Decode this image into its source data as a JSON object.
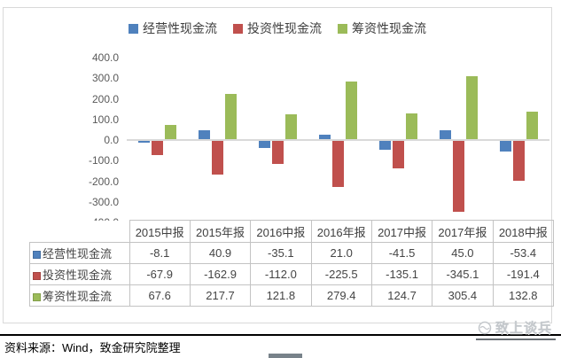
{
  "chart_data": {
    "type": "bar",
    "categories": [
      "2015中报",
      "2015年报",
      "2016中报",
      "2016年报",
      "2017中报",
      "2017年报",
      "2018中报"
    ],
    "series": [
      {
        "name": "经营性现金流",
        "color": "#4F81BD",
        "values": [
          -8.1,
          40.9,
          -35.1,
          21.0,
          -41.5,
          45.0,
          -53.4
        ]
      },
      {
        "name": "投资性现金流",
        "color": "#C0504D",
        "values": [
          -67.9,
          -162.9,
          -112.0,
          -225.5,
          -135.1,
          -345.1,
          -191.4
        ]
      },
      {
        "name": "筹资性现金流",
        "color": "#9BBB59",
        "values": [
          67.6,
          217.7,
          121.8,
          279.4,
          124.7,
          305.4,
          132.8
        ]
      }
    ],
    "title": "",
    "xlabel": "",
    "ylabel": "",
    "ylim": [
      -400,
      400
    ],
    "ytick_labels": [
      "400.0",
      "300.0",
      "200.0",
      "100.0",
      "0.0",
      "-100.0",
      "-200.0",
      "-300.0",
      "-400.0"
    ],
    "legend_position": "top",
    "grid": false
  },
  "table": {
    "header_row": [
      "2015中报",
      "2015年报",
      "2016中报",
      "2016年报",
      "2017中报",
      "2017年报",
      "2018中报"
    ],
    "rows": [
      {
        "label": "经营性现金流",
        "color": "#4F81BD",
        "cells": [
          "-8.1",
          "40.9",
          "-35.1",
          "21.0",
          "-41.5",
          "45.0",
          "-53.4"
        ]
      },
      {
        "label": "投资性现金流",
        "color": "#C0504D",
        "cells": [
          "-67.9",
          "-162.9",
          "-112.0",
          "-225.5",
          "-135.1",
          "-345.1",
          "-191.4"
        ]
      },
      {
        "label": "筹资性现金流",
        "color": "#9BBB59",
        "cells": [
          "67.6",
          "217.7",
          "121.8",
          "279.4",
          "124.7",
          "305.4",
          "132.8"
        ]
      }
    ]
  },
  "footer": {
    "source_text": "资料来源：Wind，致金研究院整理",
    "watermark_text": "致上谈兵"
  }
}
